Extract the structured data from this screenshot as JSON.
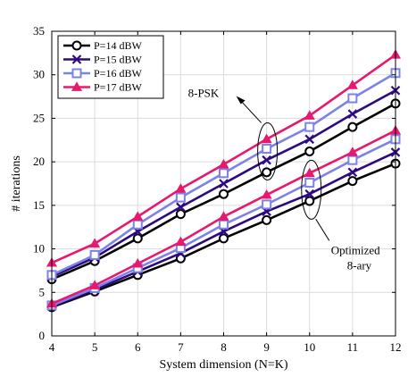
{
  "chart_data": {
    "type": "line",
    "title": "",
    "xlabel": "System dimension (N=K)",
    "ylabel": "# iterations",
    "x": [
      4,
      5,
      6,
      7,
      8,
      9,
      10,
      11,
      12
    ],
    "xlim": [
      4,
      12
    ],
    "ylim": [
      0,
      35
    ],
    "xticks": [
      "4",
      "5",
      "6",
      "7",
      "8",
      "9",
      "10",
      "11",
      "12"
    ],
    "yticks": [
      "0",
      "5",
      "10",
      "15",
      "20",
      "25",
      "30",
      "35"
    ],
    "grid": true,
    "legend_position": "top-left",
    "series": [
      {
        "name": "P=14 dBW",
        "group": "8-PSK",
        "color": "#000000",
        "marker": "circle",
        "values": [
          6.5,
          8.6,
          11.2,
          14.0,
          16.3,
          18.8,
          21.2,
          24.0,
          26.7
        ]
      },
      {
        "name": "P=15 dBW",
        "group": "8-PSK",
        "color": "#2e0a82",
        "marker": "x",
        "values": [
          6.8,
          9.0,
          12.0,
          14.8,
          17.5,
          20.2,
          22.6,
          25.5,
          28.2
        ]
      },
      {
        "name": "P=16 dBW",
        "group": "8-PSK",
        "color": "#7b83e8",
        "marker": "square",
        "values": [
          7.0,
          9.3,
          12.8,
          15.9,
          18.7,
          21.5,
          24.0,
          27.3,
          30.2
        ]
      },
      {
        "name": "P=17 dBW",
        "group": "8-PSK",
        "color": "#e8186e",
        "marker": "triangle",
        "values": [
          8.4,
          10.6,
          13.7,
          16.9,
          19.7,
          22.6,
          25.3,
          28.8,
          32.3
        ]
      },
      {
        "name": "P=14 dBW",
        "group": "Optimized 8-ary",
        "color": "#000000",
        "marker": "circle",
        "values": [
          3.3,
          5.1,
          7.0,
          8.9,
          11.2,
          13.3,
          15.5,
          17.8,
          19.8
        ]
      },
      {
        "name": "P=15 dBW",
        "group": "Optimized 8-ary",
        "color": "#2e0a82",
        "marker": "x",
        "values": [
          3.4,
          5.3,
          7.4,
          9.5,
          12.0,
          14.3,
          16.3,
          18.8,
          21.1
        ]
      },
      {
        "name": "P=16 dBW",
        "group": "Optimized 8-ary",
        "color": "#7b83e8",
        "marker": "square",
        "values": [
          3.5,
          5.5,
          7.8,
          10.1,
          12.8,
          15.1,
          17.6,
          20.2,
          22.6
        ]
      },
      {
        "name": "P=17 dBW",
        "group": "Optimized 8-ary",
        "color": "#e8186e",
        "marker": "triangle",
        "values": [
          3.7,
          5.8,
          8.3,
          10.8,
          13.7,
          16.2,
          18.7,
          21.1,
          23.6
        ]
      }
    ],
    "legend": [
      "P=14 dBW",
      "P=15 dBW",
      "P=16 dBW",
      "P=17 dBW"
    ],
    "annotations": [
      {
        "text": "8-PSK",
        "points_to_x": 9,
        "points_to_y": 21
      },
      {
        "text": "Optimized",
        "points_to_x": 10,
        "points_to_y": 16
      },
      {
        "text": "8-ary",
        "points_to_x": 10,
        "points_to_y": 16
      }
    ]
  }
}
